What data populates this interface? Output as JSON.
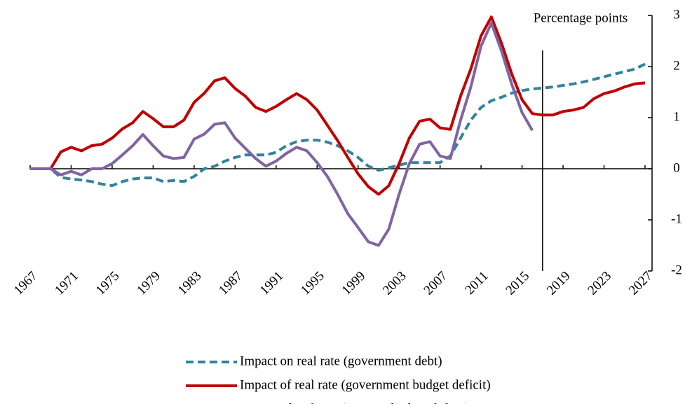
{
  "chart_data": {
    "type": "line",
    "annotation": "Percentage points",
    "x": [
      1967,
      1968,
      1969,
      1970,
      1971,
      1972,
      1973,
      1974,
      1975,
      1976,
      1977,
      1978,
      1979,
      1980,
      1981,
      1982,
      1983,
      1984,
      1985,
      1986,
      1987,
      1988,
      1989,
      1990,
      1991,
      1992,
      1993,
      1994,
      1995,
      1996,
      1997,
      1998,
      1999,
      2000,
      2001,
      2002,
      2003,
      2004,
      2005,
      2006,
      2007,
      2008,
      2009,
      2010,
      2011,
      2012,
      2013,
      2014,
      2015,
      2016,
      2017,
      2018,
      2019,
      2020,
      2021,
      2022,
      2023,
      2024,
      2025,
      2026,
      2027
    ],
    "series": [
      {
        "name": "Impact on real rate (government debt)",
        "color": "#31849b",
        "dash": true,
        "values": [
          0,
          0,
          0,
          -0.17,
          -0.2,
          -0.22,
          -0.25,
          -0.3,
          -0.33,
          -0.25,
          -0.2,
          -0.18,
          -0.18,
          -0.25,
          -0.23,
          -0.25,
          -0.15,
          0,
          0.05,
          0.15,
          0.22,
          0.27,
          0.27,
          0.27,
          0.32,
          0.45,
          0.53,
          0.56,
          0.56,
          0.52,
          0.45,
          0.35,
          0.22,
          0.05,
          -0.03,
          0.02,
          0.07,
          0.12,
          0.12,
          0.12,
          0.12,
          0.25,
          0.6,
          0.95,
          1.2,
          1.33,
          1.4,
          1.48,
          1.53,
          1.56,
          1.58,
          1.6,
          1.63,
          1.66,
          1.7,
          1.75,
          1.8,
          1.85,
          1.9,
          1.95,
          2.05
        ]
      },
      {
        "name": "Impact of real rate (government budget deficit)",
        "color": "#c00000",
        "dash": false,
        "values": [
          0,
          0,
          0,
          0.33,
          0.42,
          0.35,
          0.45,
          0.48,
          0.6,
          0.78,
          0.9,
          1.12,
          0.98,
          0.82,
          0.82,
          0.95,
          1.3,
          1.48,
          1.72,
          1.78,
          1.57,
          1.42,
          1.2,
          1.12,
          1.22,
          1.35,
          1.47,
          1.35,
          1.15,
          0.85,
          0.55,
          0.22,
          -0.1,
          -0.35,
          -0.5,
          -0.33,
          0.1,
          0.6,
          0.93,
          0.97,
          0.8,
          0.77,
          1.42,
          1.95,
          2.6,
          2.97,
          2.45,
          1.85,
          1.35,
          1.08,
          1.05,
          1.05,
          1.12,
          1.15,
          1.2,
          1.37,
          1.47,
          1.52,
          1.6,
          1.66,
          1.68
        ]
      },
      {
        "name": "Impact of real rate (primary budget deficit)",
        "color": "#8064a2",
        "dash": false,
        "values": [
          0,
          0,
          0,
          -0.12,
          -0.05,
          -0.12,
          0,
          0,
          0.1,
          0.27,
          0.45,
          0.67,
          0.45,
          0.25,
          0.2,
          0.22,
          0.58,
          0.68,
          0.87,
          0.9,
          0.6,
          0.4,
          0.2,
          0.05,
          0.15,
          0.3,
          0.42,
          0.35,
          0.12,
          -0.15,
          -0.5,
          -0.88,
          -1.15,
          -1.43,
          -1.5,
          -1.18,
          -0.5,
          0.1,
          0.48,
          0.53,
          0.25,
          0.2,
          0.95,
          1.6,
          2.4,
          2.85,
          2.3,
          1.65,
          1.1,
          0.75,
          null,
          null,
          null,
          null,
          null,
          null,
          null,
          null,
          null,
          null,
          null
        ]
      }
    ],
    "xlim": [
      1967,
      2027
    ],
    "xticks": [
      1967,
      1971,
      1975,
      1979,
      1983,
      1987,
      1991,
      1995,
      1999,
      2003,
      2007,
      2011,
      2015,
      2019,
      2023,
      2027
    ],
    "ylim": [
      -2,
      3
    ],
    "yticks": [
      -2,
      -1,
      0,
      1,
      2,
      3
    ],
    "marker_x": 2017
  }
}
